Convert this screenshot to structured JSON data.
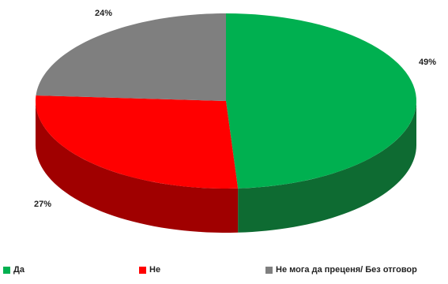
{
  "chart_data": {
    "type": "pie",
    "style": "3d",
    "categories": [
      "Да",
      "Не",
      "Не мога да преценя/ Без отговор"
    ],
    "values": [
      49,
      27,
      24
    ],
    "data_labels": [
      "49%",
      "27%",
      "24%"
    ],
    "colors": [
      "#00b050",
      "#ff0000",
      "#7f7f7f"
    ],
    "side_colors": [
      "#0e6b32",
      "#a00000",
      "#555555"
    ],
    "legend_position": "bottom",
    "title": ""
  },
  "legend": {
    "items": [
      {
        "label": "Да",
        "color": "#00b050"
      },
      {
        "label": "Не",
        "color": "#ff0000"
      },
      {
        "label": "Не мога да преценя/ Без отговор",
        "color": "#7f7f7f"
      }
    ]
  }
}
